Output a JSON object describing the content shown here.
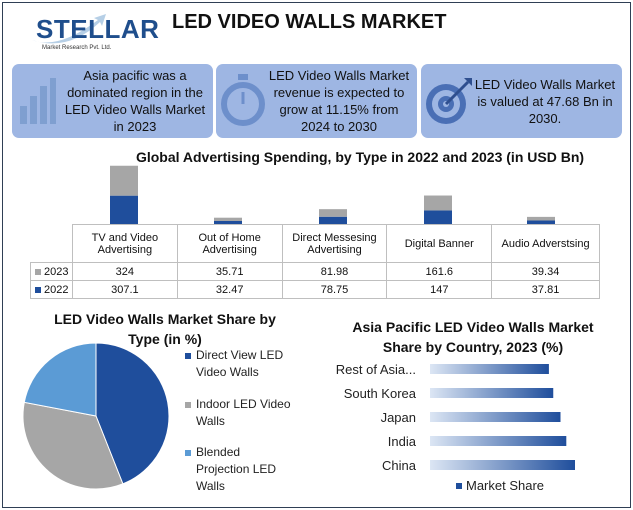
{
  "header": {
    "logo_text": "STELLAR",
    "logo_sub": "Market Research Pvt. Ltd.",
    "title": "LED VIDEO WALLS MARKET"
  },
  "stats": [
    {
      "text": "Asia pacific was a dominated region in the LED Video Walls Market in 2023",
      "icon": "bar-chart-icon"
    },
    {
      "text": "LED Video Walls Market revenue is expected to grow at 11.15% from 2024 to 2030",
      "icon": "stopwatch-icon"
    },
    {
      "text": "LED Video Walls Market is valued at 47.68 Bn in 2030.",
      "icon": "target-icon"
    }
  ],
  "colors": {
    "panel": "#9eb6e3",
    "series_2022": "#1f4e9c",
    "series_2023": "#a6a6a6",
    "blended": "#5b9bd5"
  },
  "chart_data": [
    {
      "type": "bar",
      "title": "Global Advertising Spending, by Type in 2022 and 2023 (in USD Bn)",
      "categories": [
        "TV and Video Advertising",
        "Out of Home Advertising",
        "Direct Messesing Advertising",
        "Digital Banner",
        "Audio Adverstsing"
      ],
      "series": [
        {
          "name": "2023",
          "values": [
            324,
            35.71,
            81.98,
            161.6,
            39.34
          ]
        },
        {
          "name": "2022",
          "values": [
            307.1,
            32.47,
            78.75,
            147,
            37.81
          ]
        }
      ],
      "stacked": true,
      "legend": "table"
    },
    {
      "type": "pie",
      "title": "LED Video Walls Market Share by Type (in %)",
      "labels": [
        "Direct View LED Video Walls",
        "Indoor LED Video Walls",
        "Blended Projection LED Walls"
      ],
      "values": [
        44,
        34,
        22
      ],
      "legend": "right"
    },
    {
      "type": "bar",
      "orientation": "horizontal",
      "title": "Asia Pacific LED Video Walls Market Share by Country, 2023 (%)",
      "categories": [
        "China",
        "India",
        "Japan",
        "South Korea",
        "Rest of Asia..."
      ],
      "series": [
        {
          "name": "Market Share",
          "values": [
            100,
            94,
            90,
            85,
            82
          ]
        }
      ],
      "legend": "bottom"
    }
  ]
}
